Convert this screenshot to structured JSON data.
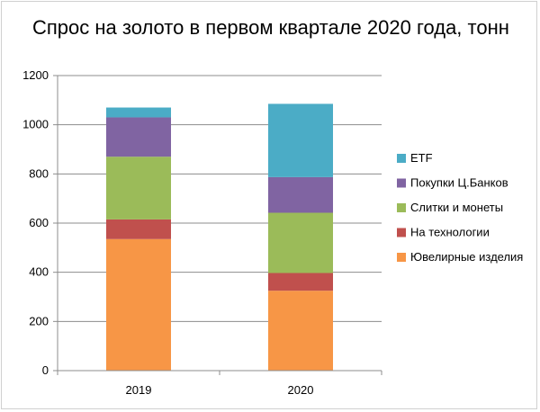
{
  "chart_data": {
    "type": "bar",
    "stacked": true,
    "title": "Спрос на золото в первом квартале 2020 года, тонн",
    "categories": [
      "2019",
      "2020"
    ],
    "ylim": [
      0,
      1200
    ],
    "yticks": [
      0,
      200,
      400,
      600,
      800,
      1000,
      1200
    ],
    "grid": true,
    "legend_position": "right",
    "series": [
      {
        "name": "Ювелирные изделия",
        "color": "#f79646",
        "values": [
          535,
          325
        ]
      },
      {
        "name": "На технологии",
        "color": "#c0504d",
        "values": [
          80,
          72
        ]
      },
      {
        "name": "Слитки и монеты",
        "color": "#9bbb59",
        "values": [
          255,
          245
        ]
      },
      {
        "name": "Покупки Ц.Банков",
        "color": "#8064a2",
        "values": [
          160,
          145
        ]
      },
      {
        "name": "ETF",
        "color": "#4bacc6",
        "values": [
          40,
          298
        ]
      }
    ]
  }
}
